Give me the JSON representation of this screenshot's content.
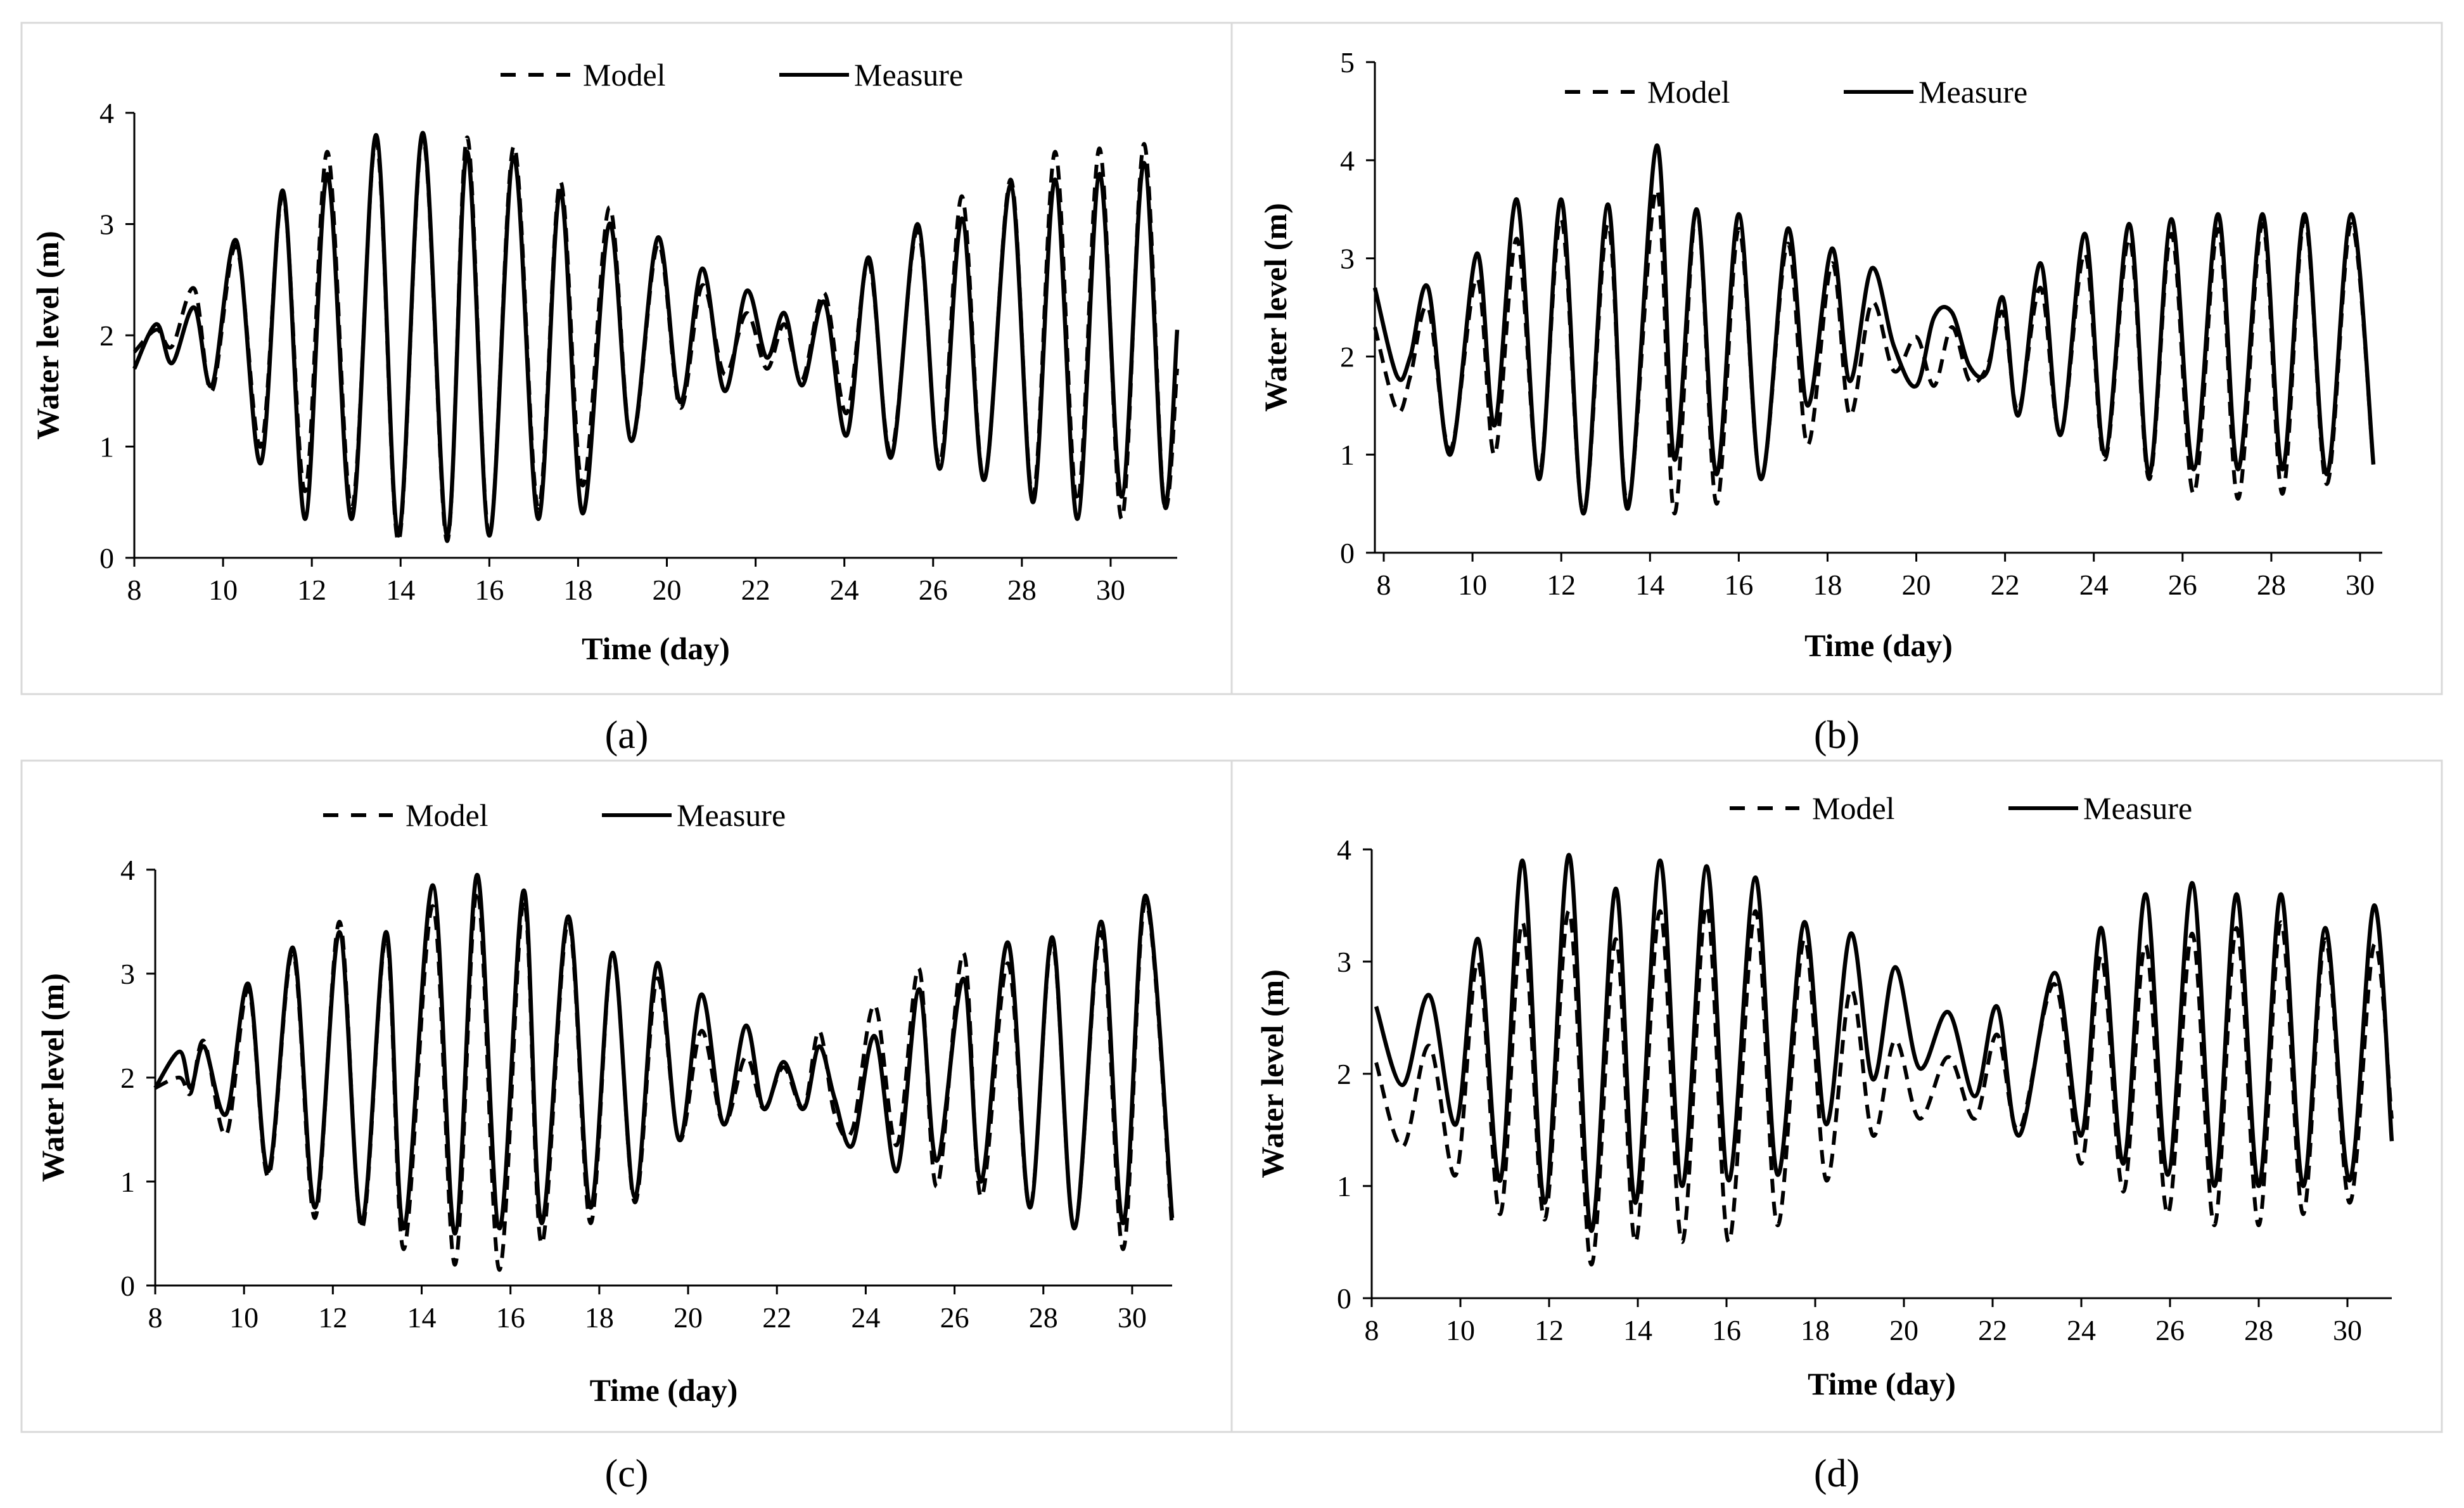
{
  "figure": {
    "panel_labels": [
      "(a)",
      "(b)",
      "(c)",
      "(d)"
    ]
  },
  "chart_data": [
    {
      "id": "a",
      "type": "line",
      "xlabel": "Time (day)",
      "ylabel": "Water level (m)",
      "xlim": [
        8,
        31.5
      ],
      "ylim": [
        0,
        4
      ],
      "xticks": [
        8,
        10,
        12,
        14,
        16,
        18,
        20,
        22,
        24,
        26,
        28,
        30
      ],
      "yticks": [
        0,
        1,
        2,
        3,
        4
      ],
      "legend": {
        "position": "top-center"
      },
      "measure_series": {
        "name": "Measure",
        "style": "solid",
        "x": [
          8.0,
          8.5,
          8.85,
          9.35,
          9.75,
          10.3,
          10.85,
          11.35,
          11.85,
          12.35,
          12.9,
          13.45,
          13.95,
          14.5,
          15.05,
          15.5,
          16.0,
          16.55,
          17.1,
          17.6,
          18.1,
          18.7,
          19.2,
          19.8,
          20.3,
          20.8,
          21.3,
          21.8,
          22.25,
          22.65,
          23.05,
          23.55,
          24.05,
          24.55,
          25.05,
          25.65,
          26.15,
          26.65,
          27.15,
          27.75,
          28.25,
          28.75,
          29.25,
          29.75,
          30.25,
          30.75,
          31.2,
          31.5
        ],
        "values": [
          1.7,
          2.1,
          1.75,
          2.25,
          1.55,
          2.85,
          0.85,
          3.3,
          0.35,
          3.45,
          0.35,
          3.8,
          0.2,
          3.82,
          0.2,
          3.65,
          0.2,
          3.6,
          0.35,
          3.3,
          0.4,
          3.0,
          1.05,
          2.88,
          1.4,
          2.6,
          1.5,
          2.4,
          1.8,
          2.2,
          1.55,
          2.3,
          1.1,
          2.7,
          0.9,
          3.0,
          0.8,
          3.05,
          0.7,
          3.35,
          0.5,
          3.4,
          0.35,
          3.45,
          0.55,
          3.55,
          0.5,
          2.05
        ]
      },
      "model_series": {
        "name": "Model",
        "style": "dashed",
        "x": [
          8.0,
          8.5,
          8.85,
          9.35,
          9.75,
          10.3,
          10.85,
          11.35,
          11.85,
          12.35,
          12.9,
          13.45,
          13.95,
          14.5,
          15.05,
          15.5,
          16.0,
          16.55,
          17.1,
          17.6,
          18.1,
          18.7,
          19.2,
          19.8,
          20.3,
          20.8,
          21.3,
          21.8,
          22.25,
          22.65,
          23.05,
          23.55,
          24.05,
          24.55,
          25.05,
          25.65,
          26.15,
          26.65,
          27.15,
          27.75,
          28.25,
          28.75,
          29.25,
          29.75,
          30.25,
          30.75,
          31.2,
          31.5
        ],
        "values": [
          1.85,
          2.05,
          1.9,
          2.42,
          1.5,
          2.8,
          1.0,
          3.25,
          0.6,
          3.65,
          0.45,
          3.75,
          0.15,
          3.78,
          0.15,
          3.78,
          0.2,
          3.7,
          0.45,
          3.38,
          0.65,
          3.15,
          1.05,
          2.82,
          1.35,
          2.45,
          1.65,
          2.2,
          1.7,
          2.1,
          1.6,
          2.38,
          1.3,
          2.65,
          0.95,
          2.95,
          0.85,
          3.25,
          0.7,
          3.4,
          0.55,
          3.65,
          0.5,
          3.68,
          0.35,
          3.72,
          0.5,
          1.7
        ]
      }
    },
    {
      "id": "b",
      "type": "line",
      "xlabel": "Time (day)",
      "ylabel": "Water level (m)",
      "xlim": [
        7.8,
        30.5
      ],
      "ylim": [
        0,
        5
      ],
      "xticks": [
        8,
        10,
        12,
        14,
        16,
        18,
        20,
        22,
        24,
        26,
        28,
        30
      ],
      "yticks": [
        0,
        1,
        2,
        3,
        4,
        5
      ],
      "legend": {
        "position": "top-center"
      },
      "measure_series": {
        "name": "Measure",
        "style": "solid",
        "x": [
          7.8,
          8.3,
          8.6,
          9.0,
          9.5,
          10.1,
          10.5,
          11.0,
          11.5,
          12.0,
          12.5,
          13.05,
          13.5,
          14.15,
          14.55,
          15.05,
          15.5,
          16.0,
          16.5,
          17.1,
          17.55,
          18.1,
          18.5,
          19.0,
          19.5,
          20.0,
          20.4,
          20.8,
          21.2,
          21.6,
          21.95,
          22.3,
          22.8,
          23.25,
          23.8,
          24.25,
          24.8,
          25.25,
          25.75,
          26.25,
          26.8,
          27.25,
          27.8,
          28.25,
          28.75,
          29.25,
          29.8,
          30.3
        ],
        "values": [
          2.7,
          1.8,
          2.0,
          2.7,
          1.0,
          3.05,
          1.3,
          3.6,
          0.75,
          3.6,
          0.4,
          3.55,
          0.45,
          4.15,
          0.95,
          3.5,
          0.8,
          3.45,
          0.75,
          3.3,
          1.5,
          3.1,
          1.75,
          2.9,
          2.1,
          1.7,
          2.4,
          2.45,
          1.9,
          1.85,
          2.6,
          1.4,
          2.95,
          1.2,
          3.25,
          1.0,
          3.35,
          0.8,
          3.4,
          0.85,
          3.45,
          0.85,
          3.45,
          0.85,
          3.45,
          0.8,
          3.45,
          0.9
        ]
      },
      "model_series": {
        "name": "Model",
        "style": "dashed",
        "x": [
          7.8,
          8.3,
          8.6,
          9.0,
          9.5,
          10.1,
          10.5,
          11.0,
          11.5,
          12.0,
          12.5,
          13.05,
          13.5,
          14.15,
          14.55,
          15.05,
          15.5,
          16.0,
          16.5,
          17.1,
          17.55,
          18.1,
          18.5,
          19.0,
          19.5,
          20.0,
          20.4,
          20.8,
          21.2,
          21.6,
          21.95,
          22.3,
          22.8,
          23.25,
          23.8,
          24.25,
          24.8,
          25.25,
          25.75,
          26.25,
          26.8,
          27.25,
          27.8,
          28.25,
          28.75,
          29.25,
          29.8,
          30.3
        ],
        "values": [
          2.3,
          1.45,
          1.8,
          2.5,
          1.05,
          2.8,
          1.0,
          3.2,
          0.8,
          3.4,
          0.4,
          3.35,
          0.5,
          3.7,
          0.4,
          3.5,
          0.5,
          3.3,
          0.75,
          3.15,
          1.1,
          2.95,
          1.4,
          2.55,
          1.85,
          2.2,
          1.7,
          2.3,
          1.75,
          1.9,
          2.45,
          1.45,
          2.7,
          1.2,
          3.05,
          0.95,
          3.2,
          0.75,
          3.25,
          0.6,
          3.3,
          0.55,
          3.35,
          0.6,
          3.4,
          0.7,
          3.35,
          0.9
        ]
      }
    },
    {
      "id": "c",
      "type": "line",
      "xlabel": "Time (day)",
      "ylabel": "Water level (m)",
      "xlim": [
        8,
        30.9
      ],
      "ylim": [
        0,
        4
      ],
      "xticks": [
        8,
        10,
        12,
        14,
        16,
        18,
        20,
        22,
        24,
        26,
        28,
        30
      ],
      "yticks": [
        0,
        1,
        2,
        3,
        4
      ],
      "legend": {
        "position": "top-center"
      },
      "measure_series": {
        "name": "Measure",
        "style": "solid",
        "x": [
          8.0,
          8.55,
          8.8,
          9.1,
          9.6,
          10.1,
          10.55,
          11.1,
          11.6,
          12.15,
          12.65,
          13.2,
          13.6,
          14.25,
          14.75,
          15.25,
          15.75,
          16.3,
          16.7,
          17.3,
          17.8,
          18.3,
          18.8,
          19.3,
          19.8,
          20.3,
          20.8,
          21.3,
          21.7,
          22.15,
          22.6,
          22.95,
          23.3,
          23.7,
          24.2,
          24.7,
          25.2,
          25.6,
          26.2,
          26.6,
          27.2,
          27.7,
          28.2,
          28.7,
          29.3,
          29.8,
          30.3,
          30.9
        ],
        "values": [
          1.9,
          2.25,
          1.9,
          2.3,
          1.65,
          2.9,
          1.1,
          3.25,
          0.75,
          3.4,
          0.6,
          3.4,
          0.55,
          3.85,
          0.5,
          3.95,
          0.55,
          3.8,
          0.6,
          3.55,
          0.75,
          3.2,
          0.85,
          3.1,
          1.4,
          2.8,
          1.55,
          2.5,
          1.7,
          2.15,
          1.7,
          2.3,
          1.8,
          1.35,
          2.4,
          1.1,
          2.85,
          1.2,
          2.95,
          1.0,
          3.3,
          0.75,
          3.35,
          0.55,
          3.5,
          0.6,
          3.75,
          0.65
        ]
      },
      "model_series": {
        "name": "Model",
        "style": "dashed",
        "x": [
          8.0,
          8.55,
          8.8,
          9.1,
          9.6,
          10.1,
          10.55,
          11.1,
          11.6,
          12.15,
          12.65,
          13.2,
          13.6,
          14.25,
          14.75,
          15.25,
          15.75,
          16.3,
          16.7,
          17.3,
          17.8,
          18.3,
          18.8,
          19.3,
          19.8,
          20.3,
          20.8,
          21.3,
          21.7,
          22.15,
          22.6,
          22.95,
          23.3,
          23.7,
          24.2,
          24.7,
          25.2,
          25.6,
          26.2,
          26.6,
          27.2,
          27.7,
          28.2,
          28.7,
          29.3,
          29.8,
          30.3,
          30.9
        ],
        "values": [
          1.9,
          2.0,
          1.85,
          2.35,
          1.45,
          2.85,
          1.05,
          3.2,
          0.65,
          3.5,
          0.55,
          3.35,
          0.35,
          3.65,
          0.2,
          3.8,
          0.15,
          3.7,
          0.4,
          3.5,
          0.6,
          3.2,
          0.8,
          2.95,
          1.4,
          2.45,
          1.55,
          2.2,
          1.7,
          2.1,
          1.7,
          2.45,
          1.65,
          1.5,
          2.7,
          1.35,
          3.05,
          0.95,
          3.2,
          0.85,
          3.1,
          0.75,
          3.3,
          0.55,
          3.4,
          0.35,
          3.7,
          0.55
        ]
      }
    },
    {
      "id": "d",
      "type": "line",
      "xlabel": "Time (day)",
      "ylabel": "Water level (m)",
      "xlim": [
        8,
        31
      ],
      "ylim": [
        0,
        4
      ],
      "xticks": [
        8,
        10,
        12,
        14,
        16,
        18,
        20,
        22,
        24,
        26,
        28,
        30
      ],
      "yticks": [
        0,
        1,
        2,
        3,
        4
      ],
      "legend": {
        "position": "top-center"
      },
      "measure_series": {
        "name": "Measure",
        "style": "solid",
        "x": [
          8.1,
          8.7,
          9.3,
          9.9,
          10.4,
          10.9,
          11.4,
          11.9,
          12.45,
          12.95,
          13.5,
          13.95,
          14.5,
          15.0,
          15.55,
          16.05,
          16.65,
          17.15,
          17.75,
          18.25,
          18.8,
          19.3,
          19.8,
          20.35,
          21.0,
          21.6,
          22.1,
          22.6,
          23.4,
          24.0,
          24.45,
          24.95,
          25.45,
          25.95,
          26.5,
          27.0,
          27.5,
          28.0,
          28.5,
          29.0,
          29.5,
          30.05,
          30.6,
          31.0
        ],
        "values": [
          2.6,
          1.9,
          2.7,
          1.55,
          3.2,
          1.05,
          3.9,
          0.85,
          3.95,
          0.6,
          3.65,
          0.85,
          3.9,
          1.0,
          3.85,
          1.05,
          3.75,
          1.1,
          3.35,
          1.55,
          3.25,
          1.95,
          2.95,
          2.05,
          2.55,
          1.8,
          2.6,
          1.45,
          2.9,
          1.45,
          3.3,
          1.2,
          3.6,
          1.1,
          3.7,
          1.0,
          3.6,
          1.0,
          3.6,
          1.0,
          3.3,
          1.05,
          3.5,
          1.4
        ]
      },
      "model_series": {
        "name": "Model",
        "style": "dashed",
        "x": [
          8.1,
          8.7,
          9.3,
          9.9,
          10.4,
          10.9,
          11.4,
          11.9,
          12.45,
          12.95,
          13.5,
          13.95,
          14.5,
          15.0,
          15.55,
          16.05,
          16.65,
          17.15,
          17.75,
          18.25,
          18.8,
          19.3,
          19.8,
          20.35,
          21.0,
          21.6,
          22.1,
          22.6,
          23.4,
          24.0,
          24.45,
          24.95,
          25.45,
          25.95,
          26.5,
          27.0,
          27.5,
          28.0,
          28.5,
          29.0,
          29.5,
          30.05,
          30.6,
          31.0
        ],
        "values": [
          2.1,
          1.35,
          2.25,
          1.1,
          3.0,
          0.75,
          3.35,
          0.7,
          3.45,
          0.3,
          3.2,
          0.5,
          3.45,
          0.5,
          3.5,
          0.5,
          3.45,
          0.65,
          3.2,
          1.05,
          2.75,
          1.45,
          2.3,
          1.6,
          2.15,
          1.6,
          2.35,
          1.5,
          2.8,
          1.2,
          3.05,
          0.95,
          3.15,
          0.75,
          3.25,
          0.65,
          3.3,
          0.65,
          3.35,
          0.75,
          3.2,
          0.85,
          3.15,
          1.6
        ]
      }
    }
  ]
}
